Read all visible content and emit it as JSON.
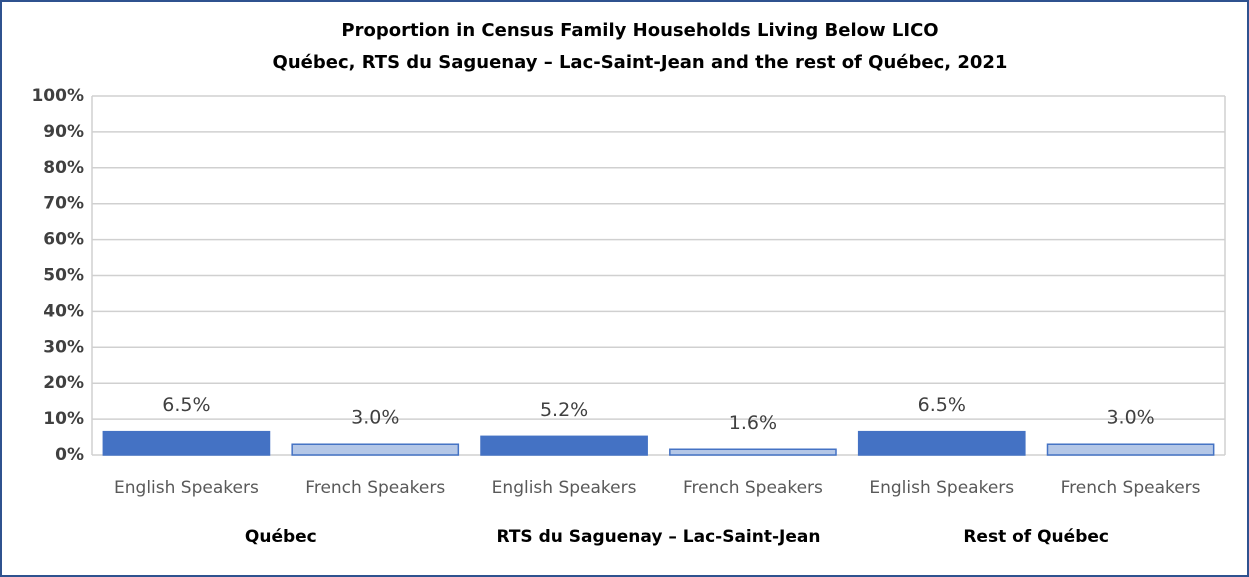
{
  "chart_data": {
    "type": "bar",
    "title": "Proportion in Census Family Households Living Below LICO",
    "subtitle": "Québec, RTS du Saguenay – Lac-Saint-Jean and the rest of Québec, 2021",
    "categories": [
      "Québec",
      "RTS du Saguenay – Lac-Saint-Jean",
      "Rest of Québec"
    ],
    "series": [
      {
        "name": "English Speakers",
        "color": "#4472c4",
        "values": [
          6.5,
          5.2,
          6.5
        ],
        "value_labels": [
          "6.5%",
          "5.2%",
          "6.5%"
        ]
      },
      {
        "name": "French Speakers",
        "color": "#b4c7e7",
        "values": [
          3.0,
          1.6,
          3.0
        ],
        "value_labels": [
          "3.0%",
          "1.6%",
          "3.0%"
        ]
      }
    ],
    "edgecolor": "#4472c4",
    "ylim": [
      0,
      100
    ],
    "yticks": [
      {
        "value": 0,
        "label": "0%"
      },
      {
        "value": 10,
        "label": "10%"
      },
      {
        "value": 20,
        "label": "20%"
      },
      {
        "value": 30,
        "label": "30%"
      },
      {
        "value": 40,
        "label": "40%"
      },
      {
        "value": 50,
        "label": "50%"
      },
      {
        "value": 60,
        "label": "60%"
      },
      {
        "value": 70,
        "label": "70%"
      },
      {
        "value": 80,
        "label": "80%"
      },
      {
        "value": 90,
        "label": "90%"
      },
      {
        "value": 100,
        "label": "100%"
      }
    ],
    "grid": true
  }
}
